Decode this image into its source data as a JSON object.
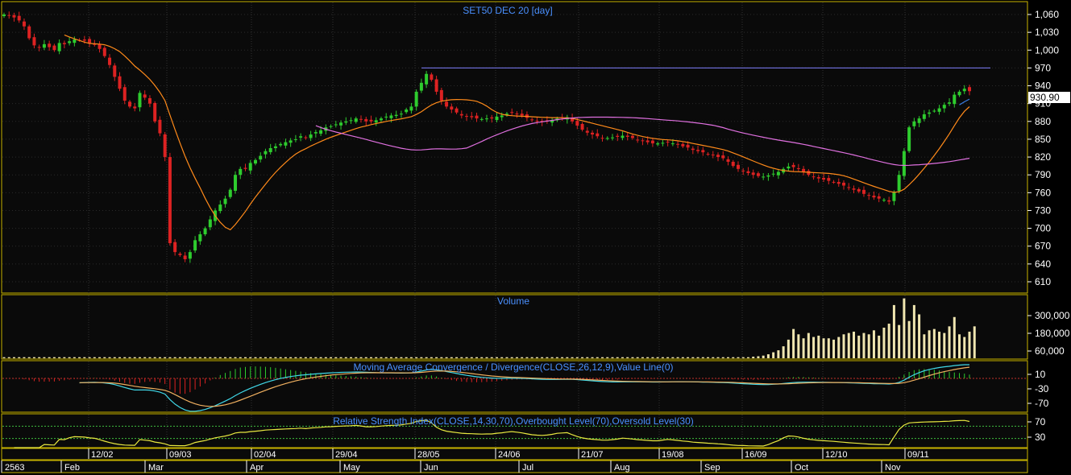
{
  "panels": {
    "price_title": "SET50 DEC 20    [day]",
    "volume_title": "Volume",
    "macd_title": "Moving Average Convergence / Divergence(CLOSE,26,12,9),Value Line(0)",
    "rsi_title": "Relative Strength Index(CLOSE,14,30,70),Overbought Level(70),Oversold Level(30)"
  },
  "last_price_label": "930.90",
  "colors": {
    "background": "#000000",
    "panel_border": "#c8b400",
    "up_candle": "#2ecc2e",
    "down_candle": "#dd2222",
    "title_text": "#4a90ff",
    "axis_text": "#ffffff",
    "sma_orange": "#ff8a1a",
    "sma_magenta": "#e070e0",
    "sma_blue": "#3a7fe8",
    "resistance_line": "#8080ff",
    "volume_bar": "#f0e6b0",
    "macd_line": "#40d8e8",
    "macd_signal": "#f0b060",
    "macd_hist_pos": "#2ecc2e",
    "macd_hist_neg": "#dd2222",
    "rsi_line": "#e8e840",
    "rsi_level": "#3fbf3f"
  },
  "x_axis": {
    "week_labels": [
      "12/02",
      "09/03",
      "02/04",
      "29/04",
      "28/05",
      "24/06",
      "21/07",
      "19/08",
      "16/09",
      "12/10",
      "09/11"
    ],
    "month_labels": [
      "2563",
      "Feb",
      "Mar",
      "Apr",
      "May",
      "Jun",
      "Jul",
      "Aug",
      "Sep",
      "Oct",
      "Nov"
    ]
  },
  "y_axes": {
    "price_ticks": [
      "1,060",
      "1,030",
      "1,000",
      "970",
      "940",
      "910",
      "880",
      "850",
      "820",
      "790",
      "760",
      "730",
      "700",
      "670",
      "640",
      "610"
    ],
    "volume_ticks": [
      "300,000",
      "180,000",
      "60,000"
    ],
    "macd_ticks": [
      "10",
      "-30",
      "-70"
    ],
    "rsi_ticks": [
      "70",
      "30"
    ]
  },
  "chart_data": [
    {
      "type": "candlestick",
      "title": "SET50 DEC 20    [day]",
      "ylim": [
        580,
        1075
      ],
      "resistance_level": 970,
      "last": 930.9,
      "close": [
        1060,
        1058,
        1055,
        1050,
        1040,
        1020,
        1008,
        1005,
        1010,
        1005,
        1000,
        1012,
        1010,
        1015,
        1018,
        1017,
        1016,
        1012,
        1010,
        1002,
        990,
        975,
        955,
        935,
        915,
        905,
        902,
        928,
        920,
        910,
        880,
        860,
        820,
        675,
        660,
        655,
        648,
        660,
        680,
        690,
        700,
        715,
        730,
        740,
        750,
        765,
        790,
        800,
        800,
        810,
        815,
        822,
        830,
        835,
        838,
        842,
        845,
        848,
        850,
        855,
        852,
        858,
        862,
        865,
        870,
        872,
        875,
        878,
        880,
        882,
        885,
        883,
        880,
        880,
        882,
        885,
        888,
        890,
        891,
        893,
        900,
        905,
        930,
        945,
        960,
        950,
        930,
        915,
        905,
        900,
        895,
        890,
        888,
        887,
        885,
        884,
        885,
        885,
        888,
        890,
        893,
        895,
        893,
        890,
        886,
        882,
        880,
        879,
        880,
        882,
        885,
        886,
        887,
        880,
        873,
        866,
        861,
        858,
        855,
        852,
        852,
        853,
        854,
        856,
        854,
        852,
        849,
        847,
        845,
        843,
        843,
        844,
        845,
        843,
        841,
        838,
        836,
        832,
        830,
        828,
        825,
        823,
        820,
        818,
        812,
        805,
        800,
        797,
        793,
        790,
        788,
        787,
        789,
        792,
        795,
        800,
        804,
        803,
        800,
        795,
        790,
        787,
        784,
        782,
        780,
        778,
        775,
        772,
        768,
        765,
        762,
        758,
        755,
        752,
        750,
        748,
        745,
        760,
        790,
        830,
        870,
        880,
        885,
        892,
        895,
        898,
        902,
        908,
        912,
        925,
        930,
        935,
        930.9
      ],
      "sma_orange": {
        "start_index": 12,
        "values_note": "computed moving average of close"
      },
      "sma_magenta": {
        "start_index": 62
      },
      "sma_blue": {
        "start_index": 190
      }
    },
    {
      "type": "bar",
      "title": "Volume",
      "values": [
        8000,
        8000,
        8000,
        8000,
        8000,
        8000,
        8000,
        8000,
        8000,
        8000,
        8000,
        8000,
        8000,
        8000,
        8000,
        8000,
        8000,
        8000,
        8000,
        8000,
        8000,
        8000,
        8000,
        8000,
        8000,
        8000,
        8000,
        8000,
        8000,
        8000,
        8000,
        8000,
        8000,
        8000,
        8000,
        8000,
        8000,
        8000,
        8000,
        8000,
        8000,
        8000,
        8000,
        8000,
        8000,
        8000,
        8000,
        8000,
        8000,
        8000,
        8000,
        8000,
        8000,
        8000,
        8000,
        8000,
        8000,
        8000,
        8000,
        8000,
        8000,
        8000,
        8000,
        8000,
        8000,
        8000,
        8000,
        8000,
        8000,
        8000,
        8000,
        8000,
        8000,
        8000,
        8000,
        8000,
        8000,
        8000,
        8000,
        8000,
        8000,
        8000,
        8000,
        8000,
        8000,
        8000,
        8000,
        8000,
        8000,
        8000,
        8000,
        8000,
        8000,
        8000,
        8000,
        8000,
        8000,
        8000,
        8000,
        8000,
        8000,
        8000,
        8000,
        8000,
        8000,
        8000,
        8000,
        8000,
        8000,
        8000,
        8000,
        8000,
        8000,
        8000,
        8000,
        8000,
        8000,
        8000,
        8000,
        8000,
        8000,
        8000,
        8000,
        8000,
        8000,
        8000,
        8000,
        8000,
        8000,
        8000,
        8000,
        8000,
        8000,
        8000,
        8000,
        8000,
        8000,
        8000,
        8000,
        8000,
        8000,
        8000,
        8000,
        8000,
        8000,
        8000,
        8000,
        8000,
        8000,
        12000,
        15000,
        20000,
        30000,
        45000,
        60000,
        90000,
        140000,
        220000,
        180000,
        150000,
        190000,
        160000,
        170000,
        150000,
        150000,
        140000,
        160000,
        180000,
        190000,
        200000,
        170000,
        190000,
        180000,
        210000,
        170000,
        230000,
        260000,
        400000,
        250000,
        450000,
        280000,
        400000,
        330000,
        180000,
        210000,
        220000,
        200000,
        190000,
        240000,
        310000,
        180000,
        160000,
        200000,
        240000
      ],
      "ylim": [
        0,
        460000
      ]
    },
    {
      "type": "line",
      "title": "Moving Average Convergence / Divergence(CLOSE,26,12,9),Value Line(0)",
      "ylim": [
        -110,
        30
      ],
      "series_names": [
        "MACD",
        "Signal"
      ]
    },
    {
      "type": "line",
      "title": "Relative Strength Index(CLOSE,14,30,70),Overbought Level(70),Oversold Level(30)",
      "ylim": [
        0,
        100
      ],
      "levels": [
        70,
        30
      ]
    }
  ]
}
